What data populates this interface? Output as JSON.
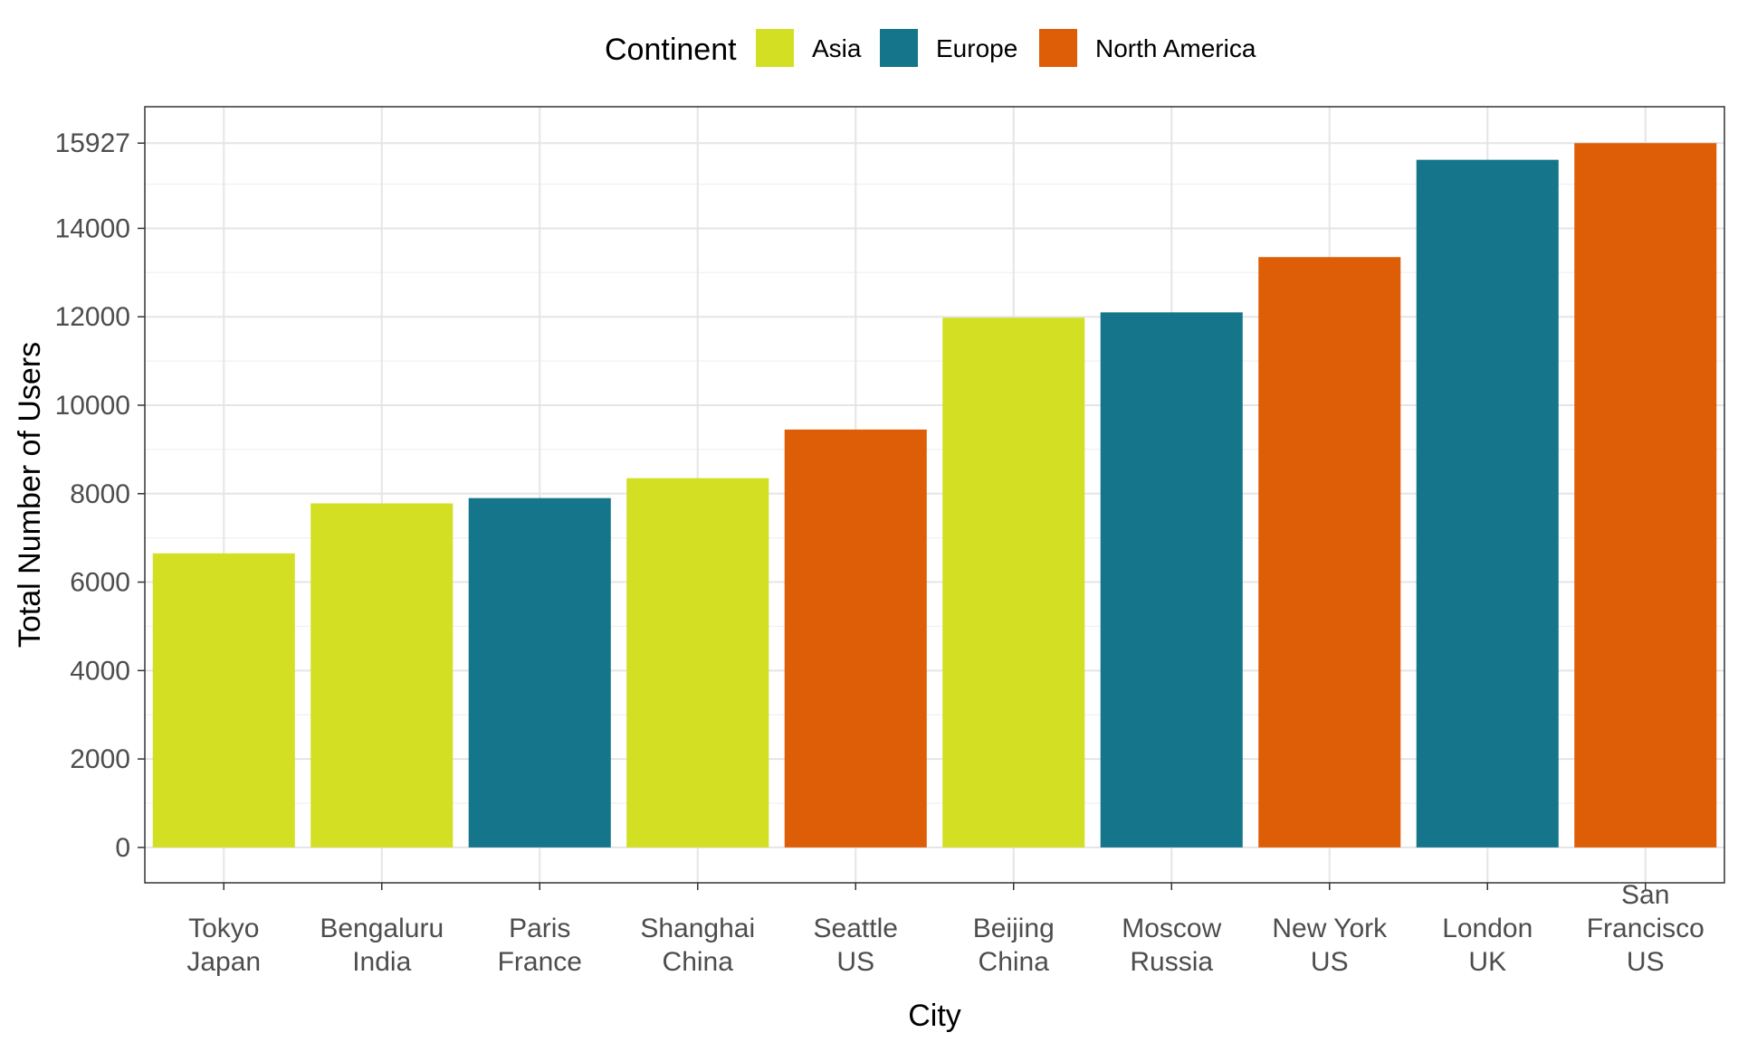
{
  "chart_data": {
    "type": "bar",
    "xlabel": "City",
    "ylabel": "Total Number of Users",
    "ylim": [
      -800,
      16750
    ],
    "yticks": [
      0,
      2000,
      4000,
      6000,
      8000,
      10000,
      12000,
      14000,
      15927
    ],
    "grid": true,
    "legend": {
      "title": "Continent",
      "placement": "top",
      "entries": [
        {
          "name": "Asia",
          "color": "#D2DF22"
        },
        {
          "name": "Europe",
          "color": "#15758A"
        },
        {
          "name": "North America",
          "color": "#DD5E07"
        }
      ]
    },
    "categories": [
      {
        "city": "Tokyo",
        "country": "Japan",
        "value": 6650,
        "continent": "Asia"
      },
      {
        "city": "Bengaluru",
        "country": "India",
        "value": 7780,
        "continent": "Asia"
      },
      {
        "city": "Paris",
        "country": "France",
        "value": 7900,
        "continent": "Europe"
      },
      {
        "city": "Shanghai",
        "country": "China",
        "value": 8350,
        "continent": "Asia"
      },
      {
        "city": "Seattle",
        "country": "US",
        "value": 9450,
        "continent": "North America"
      },
      {
        "city": "Beijing",
        "country": "China",
        "value": 11980,
        "continent": "Asia"
      },
      {
        "city": "Moscow",
        "country": "Russia",
        "value": 12100,
        "continent": "Europe"
      },
      {
        "city": "New York",
        "country": "US",
        "value": 13350,
        "continent": "North America"
      },
      {
        "city": "London",
        "country": "UK",
        "value": 15550,
        "continent": "Europe"
      },
      {
        "city": "San Francisco",
        "country": "US",
        "value": 15927,
        "continent": "North America"
      }
    ]
  }
}
